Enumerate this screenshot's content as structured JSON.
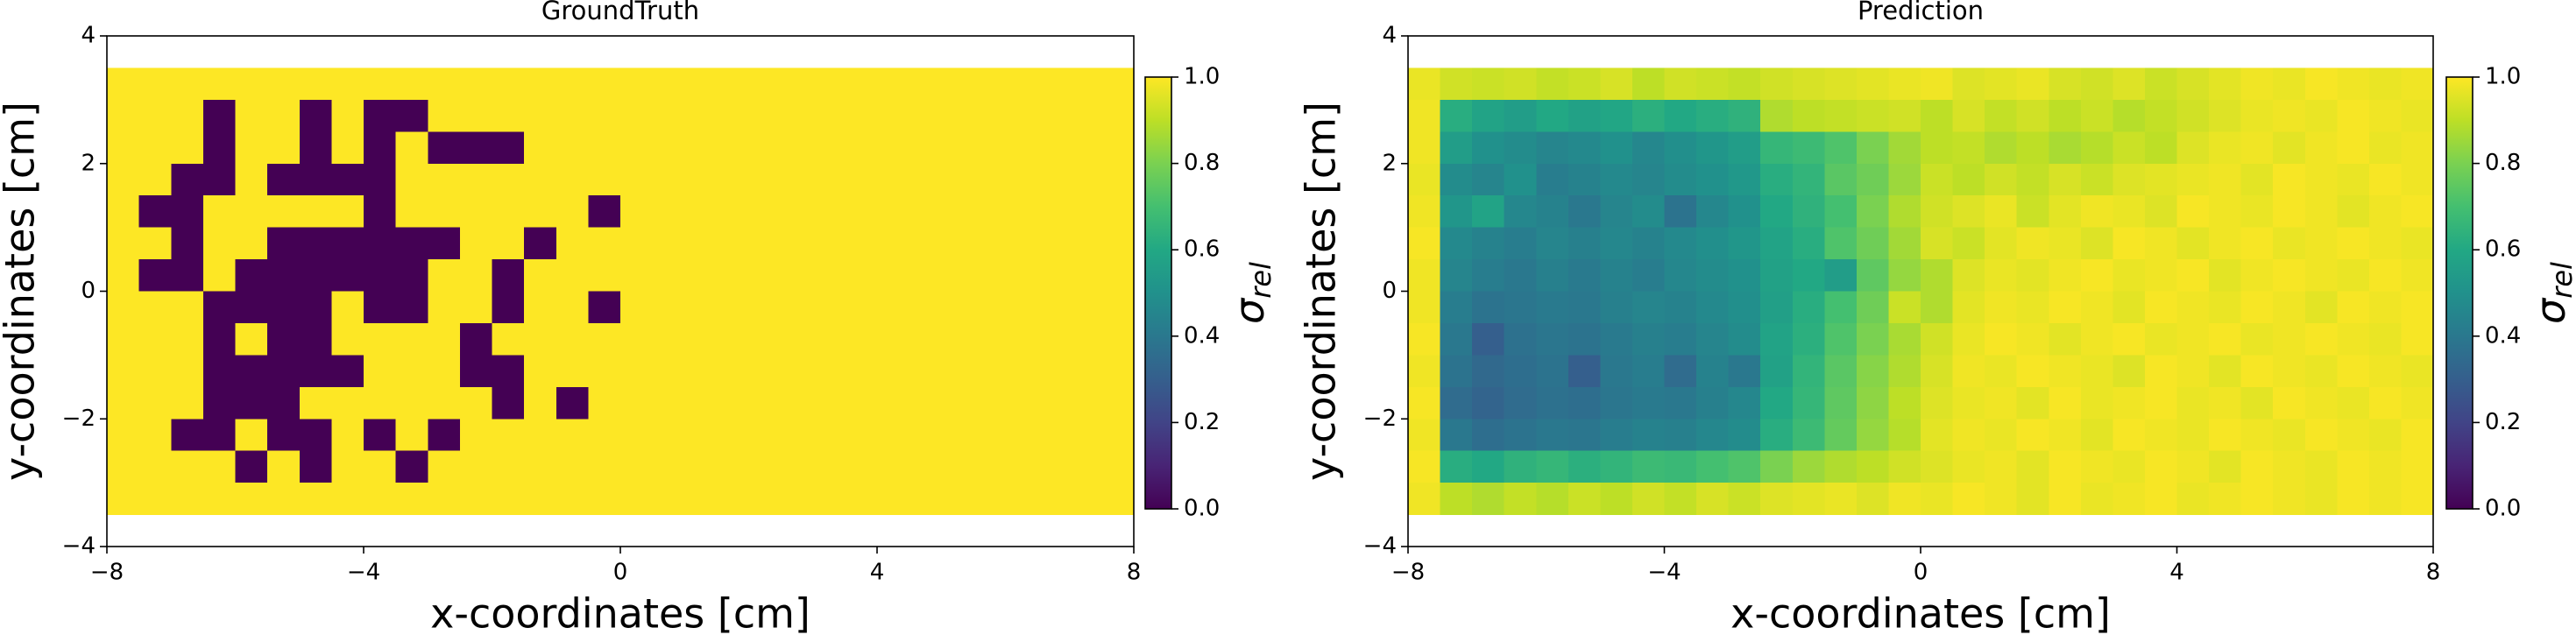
{
  "chart_data": [
    {
      "type": "heatmap",
      "title": "GroundTruth",
      "x_label": "x-coordinates [cm]",
      "y_label": "y-coordinates [cm]",
      "xlim": [
        -8,
        8
      ],
      "ylim": [
        -4,
        4
      ],
      "xticks": [
        {
          "value": -8,
          "label": "−8"
        },
        {
          "value": -4,
          "label": "−4"
        },
        0,
        4,
        8
      ],
      "yticks": [
        {
          "value": -4,
          "label": "−4"
        },
        {
          "value": -2,
          "label": "−2"
        },
        0,
        2,
        4
      ],
      "extent": [
        -8,
        8,
        -3.5,
        3.5
      ],
      "origin": "upper",
      "colormap": "viridis",
      "clim": [
        0,
        1
      ],
      "cticks": [
        {
          "value": 0,
          "label": "0.0"
        },
        {
          "value": 0.2,
          "label": "0.2"
        },
        {
          "value": 0.4,
          "label": "0.4"
        },
        {
          "value": 0.6,
          "label": "0.6"
        },
        {
          "value": 0.8,
          "label": "0.8"
        },
        {
          "value": 1,
          "label": "1.0"
        }
      ],
      "colorbar_label": {
        "symbol": "σ",
        "subscript": "rel"
      },
      "z": [
        [
          1,
          1,
          1,
          1,
          1,
          1,
          1,
          1,
          1,
          1,
          1,
          1,
          1,
          1,
          1,
          1,
          1,
          1,
          1,
          1,
          1,
          1,
          1,
          1,
          1,
          1,
          1,
          1,
          1,
          1,
          1,
          1
        ],
        [
          1,
          1,
          1,
          0,
          1,
          1,
          0,
          1,
          0,
          0,
          1,
          1,
          1,
          1,
          1,
          1,
          1,
          1,
          1,
          1,
          1,
          1,
          1,
          1,
          1,
          1,
          1,
          1,
          1,
          1,
          1,
          1
        ],
        [
          1,
          1,
          1,
          0,
          1,
          1,
          0,
          1,
          0,
          1,
          0,
          0,
          0,
          1,
          1,
          1,
          1,
          1,
          1,
          1,
          1,
          1,
          1,
          1,
          1,
          1,
          1,
          1,
          1,
          1,
          1,
          1
        ],
        [
          1,
          1,
          0,
          0,
          1,
          0,
          0,
          0,
          0,
          1,
          1,
          1,
          1,
          1,
          1,
          1,
          1,
          1,
          1,
          1,
          1,
          1,
          1,
          1,
          1,
          1,
          1,
          1,
          1,
          1,
          1,
          1
        ],
        [
          1,
          0,
          0,
          1,
          1,
          1,
          1,
          1,
          0,
          1,
          1,
          1,
          1,
          1,
          1,
          0,
          1,
          1,
          1,
          1,
          1,
          1,
          1,
          1,
          1,
          1,
          1,
          1,
          1,
          1,
          1,
          1
        ],
        [
          1,
          1,
          0,
          1,
          1,
          0,
          0,
          0,
          0,
          0,
          0,
          1,
          1,
          0,
          1,
          1,
          1,
          1,
          1,
          1,
          1,
          1,
          1,
          1,
          1,
          1,
          1,
          1,
          1,
          1,
          1,
          1
        ],
        [
          1,
          0,
          0,
          1,
          0,
          0,
          0,
          0,
          0,
          0,
          1,
          1,
          0,
          1,
          1,
          1,
          1,
          1,
          1,
          1,
          1,
          1,
          1,
          1,
          1,
          1,
          1,
          1,
          1,
          1,
          1,
          1
        ],
        [
          1,
          1,
          1,
          0,
          0,
          0,
          0,
          1,
          0,
          0,
          1,
          1,
          0,
          1,
          1,
          0,
          1,
          1,
          1,
          1,
          1,
          1,
          1,
          1,
          1,
          1,
          1,
          1,
          1,
          1,
          1,
          1
        ],
        [
          1,
          1,
          1,
          0,
          1,
          0,
          0,
          1,
          1,
          1,
          1,
          0,
          1,
          1,
          1,
          1,
          1,
          1,
          1,
          1,
          1,
          1,
          1,
          1,
          1,
          1,
          1,
          1,
          1,
          1,
          1,
          1
        ],
        [
          1,
          1,
          1,
          0,
          0,
          0,
          0,
          0,
          1,
          1,
          1,
          0,
          0,
          1,
          1,
          1,
          1,
          1,
          1,
          1,
          1,
          1,
          1,
          1,
          1,
          1,
          1,
          1,
          1,
          1,
          1,
          1
        ],
        [
          1,
          1,
          1,
          0,
          0,
          0,
          1,
          1,
          1,
          1,
          1,
          1,
          0,
          1,
          0,
          1,
          1,
          1,
          1,
          1,
          1,
          1,
          1,
          1,
          1,
          1,
          1,
          1,
          1,
          1,
          1,
          1
        ],
        [
          1,
          1,
          0,
          0,
          1,
          0,
          0,
          1,
          0,
          1,
          0,
          1,
          1,
          1,
          1,
          1,
          1,
          1,
          1,
          1,
          1,
          1,
          1,
          1,
          1,
          1,
          1,
          1,
          1,
          1,
          1,
          1
        ],
        [
          1,
          1,
          1,
          1,
          0,
          1,
          0,
          1,
          1,
          0,
          1,
          1,
          1,
          1,
          1,
          1,
          1,
          1,
          1,
          1,
          1,
          1,
          1,
          1,
          1,
          1,
          1,
          1,
          1,
          1,
          1,
          1
        ],
        [
          1,
          1,
          1,
          1,
          1,
          1,
          1,
          1,
          1,
          1,
          1,
          1,
          1,
          1,
          1,
          1,
          1,
          1,
          1,
          1,
          1,
          1,
          1,
          1,
          1,
          1,
          1,
          1,
          1,
          1,
          1,
          1
        ]
      ]
    },
    {
      "type": "heatmap",
      "title": "Prediction",
      "x_label": "x-coordinates [cm]",
      "y_label": "y-coordinates [cm]",
      "xlim": [
        -8,
        8
      ],
      "ylim": [
        -4,
        4
      ],
      "xticks": [
        {
          "value": -8,
          "label": "−8"
        },
        {
          "value": -4,
          "label": "−4"
        },
        0,
        4,
        8
      ],
      "yticks": [
        {
          "value": -4,
          "label": "−4"
        },
        {
          "value": -2,
          "label": "−2"
        },
        0,
        2,
        4
      ],
      "extent": [
        -8,
        8,
        -3.5,
        3.5
      ],
      "origin": "upper",
      "colormap": "viridis",
      "clim": [
        0,
        1
      ],
      "cticks": [
        {
          "value": 0,
          "label": "0.0"
        },
        {
          "value": 0.2,
          "label": "0.2"
        },
        {
          "value": 0.4,
          "label": "0.4"
        },
        {
          "value": 0.6,
          "label": "0.6"
        },
        {
          "value": 0.8,
          "label": "0.8"
        },
        {
          "value": 1,
          "label": "1.0"
        }
      ],
      "colorbar_label": {
        "symbol": "σ",
        "subscript": "rel"
      },
      "z": [
        [
          0.97,
          0.93,
          0.92,
          0.93,
          0.91,
          0.92,
          0.94,
          0.9,
          0.93,
          0.92,
          0.91,
          0.93,
          0.94,
          0.95,
          0.96,
          0.97,
          0.98,
          0.95,
          0.96,
          0.97,
          0.94,
          0.93,
          0.95,
          0.92,
          0.94,
          0.96,
          0.98,
          0.97,
          0.99,
          0.98,
          0.97,
          0.98
        ],
        [
          0.98,
          0.62,
          0.58,
          0.55,
          0.6,
          0.57,
          0.59,
          0.63,
          0.6,
          0.62,
          0.64,
          0.88,
          0.9,
          0.91,
          0.92,
          0.93,
          0.9,
          0.94,
          0.91,
          0.93,
          0.9,
          0.92,
          0.89,
          0.91,
          0.93,
          0.95,
          0.97,
          0.98,
          0.97,
          0.99,
          0.98,
          0.97
        ],
        [
          0.98,
          0.55,
          0.5,
          0.48,
          0.45,
          0.47,
          0.5,
          0.46,
          0.49,
          0.52,
          0.55,
          0.66,
          0.68,
          0.72,
          0.8,
          0.86,
          0.9,
          0.91,
          0.88,
          0.9,
          0.87,
          0.89,
          0.92,
          0.9,
          0.95,
          0.97,
          0.98,
          0.96,
          0.98,
          0.99,
          0.97,
          0.98
        ],
        [
          0.97,
          0.48,
          0.45,
          0.5,
          0.42,
          0.44,
          0.47,
          0.45,
          0.48,
          0.5,
          0.53,
          0.62,
          0.65,
          0.74,
          0.78,
          0.85,
          0.92,
          0.9,
          0.93,
          0.91,
          0.94,
          0.92,
          0.95,
          0.96,
          0.97,
          0.98,
          0.96,
          0.99,
          0.98,
          0.97,
          0.99,
          0.98
        ],
        [
          0.98,
          0.52,
          0.58,
          0.46,
          0.44,
          0.4,
          0.45,
          0.48,
          0.38,
          0.46,
          0.5,
          0.6,
          0.64,
          0.7,
          0.8,
          0.88,
          0.93,
          0.95,
          0.97,
          0.92,
          0.96,
          0.98,
          0.97,
          0.95,
          0.99,
          0.98,
          0.97,
          0.99,
          0.98,
          0.96,
          0.98,
          0.99
        ],
        [
          0.99,
          0.47,
          0.44,
          0.42,
          0.45,
          0.43,
          0.46,
          0.44,
          0.47,
          0.49,
          0.52,
          0.58,
          0.62,
          0.72,
          0.78,
          0.86,
          0.94,
          0.92,
          0.96,
          0.98,
          0.97,
          0.95,
          0.99,
          0.98,
          0.96,
          0.98,
          0.99,
          0.97,
          0.98,
          0.99,
          0.98,
          0.97
        ],
        [
          0.98,
          0.45,
          0.42,
          0.4,
          0.43,
          0.41,
          0.44,
          0.42,
          0.46,
          0.48,
          0.5,
          0.57,
          0.6,
          0.55,
          0.75,
          0.84,
          0.88,
          0.95,
          0.97,
          0.96,
          0.98,
          0.99,
          0.97,
          0.98,
          0.99,
          0.96,
          0.98,
          0.99,
          0.98,
          0.97,
          0.99,
          0.98
        ],
        [
          0.98,
          0.42,
          0.38,
          0.39,
          0.41,
          0.4,
          0.43,
          0.45,
          0.44,
          0.47,
          0.49,
          0.56,
          0.62,
          0.7,
          0.78,
          0.92,
          0.88,
          0.96,
          0.98,
          0.97,
          0.99,
          0.98,
          0.96,
          0.99,
          0.98,
          0.97,
          0.99,
          0.98,
          0.96,
          0.99,
          0.98,
          0.99
        ],
        [
          0.99,
          0.4,
          0.3,
          0.37,
          0.39,
          0.38,
          0.41,
          0.43,
          0.42,
          0.45,
          0.48,
          0.58,
          0.63,
          0.72,
          0.8,
          0.87,
          0.93,
          0.97,
          0.99,
          0.98,
          0.96,
          0.98,
          0.99,
          0.97,
          0.98,
          0.99,
          0.97,
          0.98,
          0.99,
          0.98,
          0.97,
          0.99
        ],
        [
          0.98,
          0.38,
          0.34,
          0.36,
          0.38,
          0.3,
          0.4,
          0.42,
          0.35,
          0.44,
          0.4,
          0.57,
          0.65,
          0.74,
          0.82,
          0.88,
          0.94,
          0.98,
          0.97,
          0.99,
          0.98,
          0.97,
          0.95,
          0.99,
          0.98,
          0.96,
          0.99,
          0.98,
          0.97,
          0.99,
          0.98,
          0.97
        ],
        [
          0.99,
          0.35,
          0.32,
          0.35,
          0.37,
          0.36,
          0.39,
          0.41,
          0.4,
          0.43,
          0.46,
          0.6,
          0.66,
          0.75,
          0.83,
          0.9,
          0.95,
          0.97,
          0.98,
          0.96,
          0.99,
          0.97,
          0.98,
          0.99,
          0.97,
          0.98,
          0.96,
          0.99,
          0.98,
          0.97,
          0.99,
          0.98
        ],
        [
          0.98,
          0.4,
          0.36,
          0.38,
          0.4,
          0.39,
          0.42,
          0.44,
          0.43,
          0.46,
          0.48,
          0.62,
          0.68,
          0.76,
          0.84,
          0.89,
          0.96,
          0.98,
          0.97,
          0.99,
          0.98,
          0.96,
          0.99,
          0.98,
          0.97,
          0.99,
          0.98,
          0.97,
          0.99,
          0.98,
          0.97,
          0.99
        ],
        [
          0.99,
          0.62,
          0.6,
          0.64,
          0.66,
          0.63,
          0.65,
          0.68,
          0.67,
          0.7,
          0.72,
          0.8,
          0.85,
          0.88,
          0.9,
          0.93,
          0.95,
          0.97,
          0.98,
          0.96,
          0.99,
          0.98,
          0.97,
          0.99,
          0.98,
          0.96,
          0.99,
          0.98,
          0.97,
          0.99,
          0.98,
          0.99
        ],
        [
          0.98,
          0.9,
          0.88,
          0.91,
          0.89,
          0.92,
          0.9,
          0.93,
          0.91,
          0.94,
          0.92,
          0.95,
          0.96,
          0.97,
          0.95,
          0.98,
          0.97,
          0.99,
          0.98,
          0.96,
          0.99,
          0.97,
          0.98,
          0.99,
          0.97,
          0.98,
          0.99,
          0.98,
          0.97,
          0.99,
          0.98,
          0.99
        ]
      ]
    }
  ]
}
